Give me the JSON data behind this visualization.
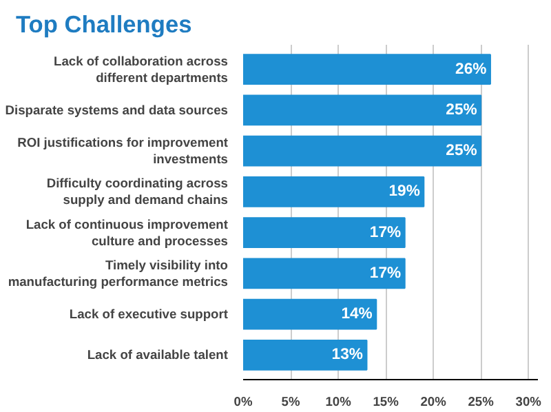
{
  "chart_data": {
    "type": "bar",
    "orientation": "horizontal",
    "title": "Top Challenges",
    "categories": [
      "Lack of collaboration across different departments",
      "Disparate systems and data sources",
      "ROI justifications for improvement investments",
      "Difficulty coordinating across supply and demand chains",
      "Lack of continuous improvement culture and processes",
      "Timely visibility into manufacturing performance metrics",
      "Lack of executive support",
      "Lack of available talent"
    ],
    "values": [
      26,
      25,
      25,
      19,
      17,
      17,
      14,
      13
    ],
    "value_labels": [
      "26%",
      "25%",
      "25%",
      "19%",
      "17%",
      "17%",
      "14%",
      "13%"
    ],
    "color": "#1e90d4",
    "xlim": [
      0,
      31
    ],
    "xticks": [
      {
        "value": 0,
        "label": "0%"
      },
      {
        "value": 5,
        "label": "5%"
      },
      {
        "value": 10,
        "label": "10%"
      },
      {
        "value": 15,
        "label": "15%"
      },
      {
        "value": 20,
        "label": "20%"
      },
      {
        "value": 25,
        "label": "25%"
      },
      {
        "value": 30,
        "label": "30%"
      }
    ],
    "grid": "x"
  }
}
